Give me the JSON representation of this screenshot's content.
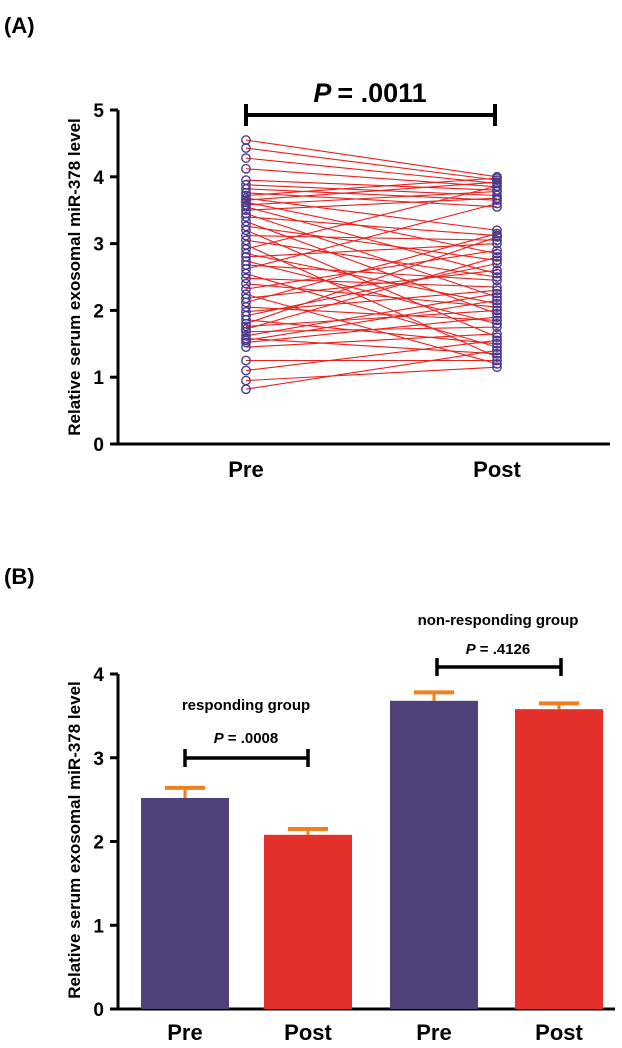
{
  "chart_data": [
    {
      "panel_label": "(A)",
      "type": "line",
      "categories": [
        "Pre",
        "Post"
      ],
      "ylabel": "Relative serum exosomal miR-378 level",
      "ylim": [
        0,
        5
      ],
      "yticks": [
        0,
        1,
        2,
        3,
        4,
        5
      ],
      "annotation": {
        "p_prefix": "P",
        "p_value": "= .0011"
      },
      "colors": {
        "line": "#e8201e",
        "marker": "#4a3a8c"
      },
      "pairs": [
        [
          4.55,
          4.0
        ],
        [
          4.43,
          3.95
        ],
        [
          4.28,
          3.9
        ],
        [
          4.12,
          3.85
        ],
        [
          3.95,
          3.8
        ],
        [
          3.88,
          3.72
        ],
        [
          3.82,
          3.65
        ],
        [
          3.76,
          3.55
        ],
        [
          3.72,
          3.98
        ],
        [
          3.68,
          3.2
        ],
        [
          3.65,
          3.92
        ],
        [
          3.62,
          2.85
        ],
        [
          3.58,
          3.78
        ],
        [
          3.55,
          2.55
        ],
        [
          3.5,
          3.68
        ],
        [
          3.45,
          2.2
        ],
        [
          3.4,
          3.12
        ],
        [
          3.33,
          1.95
        ],
        [
          3.26,
          2.75
        ],
        [
          3.2,
          1.6
        ],
        [
          3.12,
          3.05
        ],
        [
          3.05,
          2.5
        ],
        [
          2.98,
          1.3
        ],
        [
          2.92,
          3.86
        ],
        [
          2.85,
          2.1
        ],
        [
          2.8,
          3.0
        ],
        [
          2.74,
          1.8
        ],
        [
          2.68,
          2.45
        ],
        [
          2.62,
          3.6
        ],
        [
          2.55,
          1.45
        ],
        [
          2.48,
          2.35
        ],
        [
          2.4,
          2.05
        ],
        [
          2.32,
          2.9
        ],
        [
          2.24,
          1.2
        ],
        [
          2.18,
          2.6
        ],
        [
          2.12,
          3.15
        ],
        [
          2.05,
          1.85
        ],
        [
          1.98,
          2.3
        ],
        [
          1.92,
          2.7
        ],
        [
          1.86,
          1.5
        ],
        [
          1.8,
          3.1
        ],
        [
          1.76,
          2.0
        ],
        [
          1.72,
          2.8
        ],
        [
          1.68,
          1.75
        ],
        [
          1.62,
          2.25
        ],
        [
          1.58,
          1.35
        ],
        [
          1.55,
          2.15
        ],
        [
          1.52,
          1.9
        ],
        [
          1.45,
          1.65
        ],
        [
          1.25,
          1.25
        ],
        [
          1.1,
          1.55
        ],
        [
          0.95,
          1.15
        ],
        [
          0.82,
          1.4
        ]
      ]
    },
    {
      "panel_label": "(B)",
      "type": "bar",
      "categories": [
        "Pre",
        "Post",
        "Pre",
        "Post"
      ],
      "values": [
        2.52,
        2.08,
        3.68,
        3.58
      ],
      "errors": [
        0.12,
        0.07,
        0.1,
        0.07
      ],
      "ylabel": "Relative serum exosomal miR-378 level",
      "ylim": [
        0,
        4
      ],
      "yticks": [
        0,
        1,
        2,
        3,
        4
      ],
      "colors": {
        "pre": "#4f4179",
        "post": "#e3302a",
        "error": "#f07f22"
      },
      "groups": [
        {
          "label": "responding group",
          "p_prefix": "P",
          "p_value": "= .0008"
        },
        {
          "label": "non-responding group",
          "p_prefix": "P",
          "p_value": "= .4126"
        }
      ]
    }
  ]
}
